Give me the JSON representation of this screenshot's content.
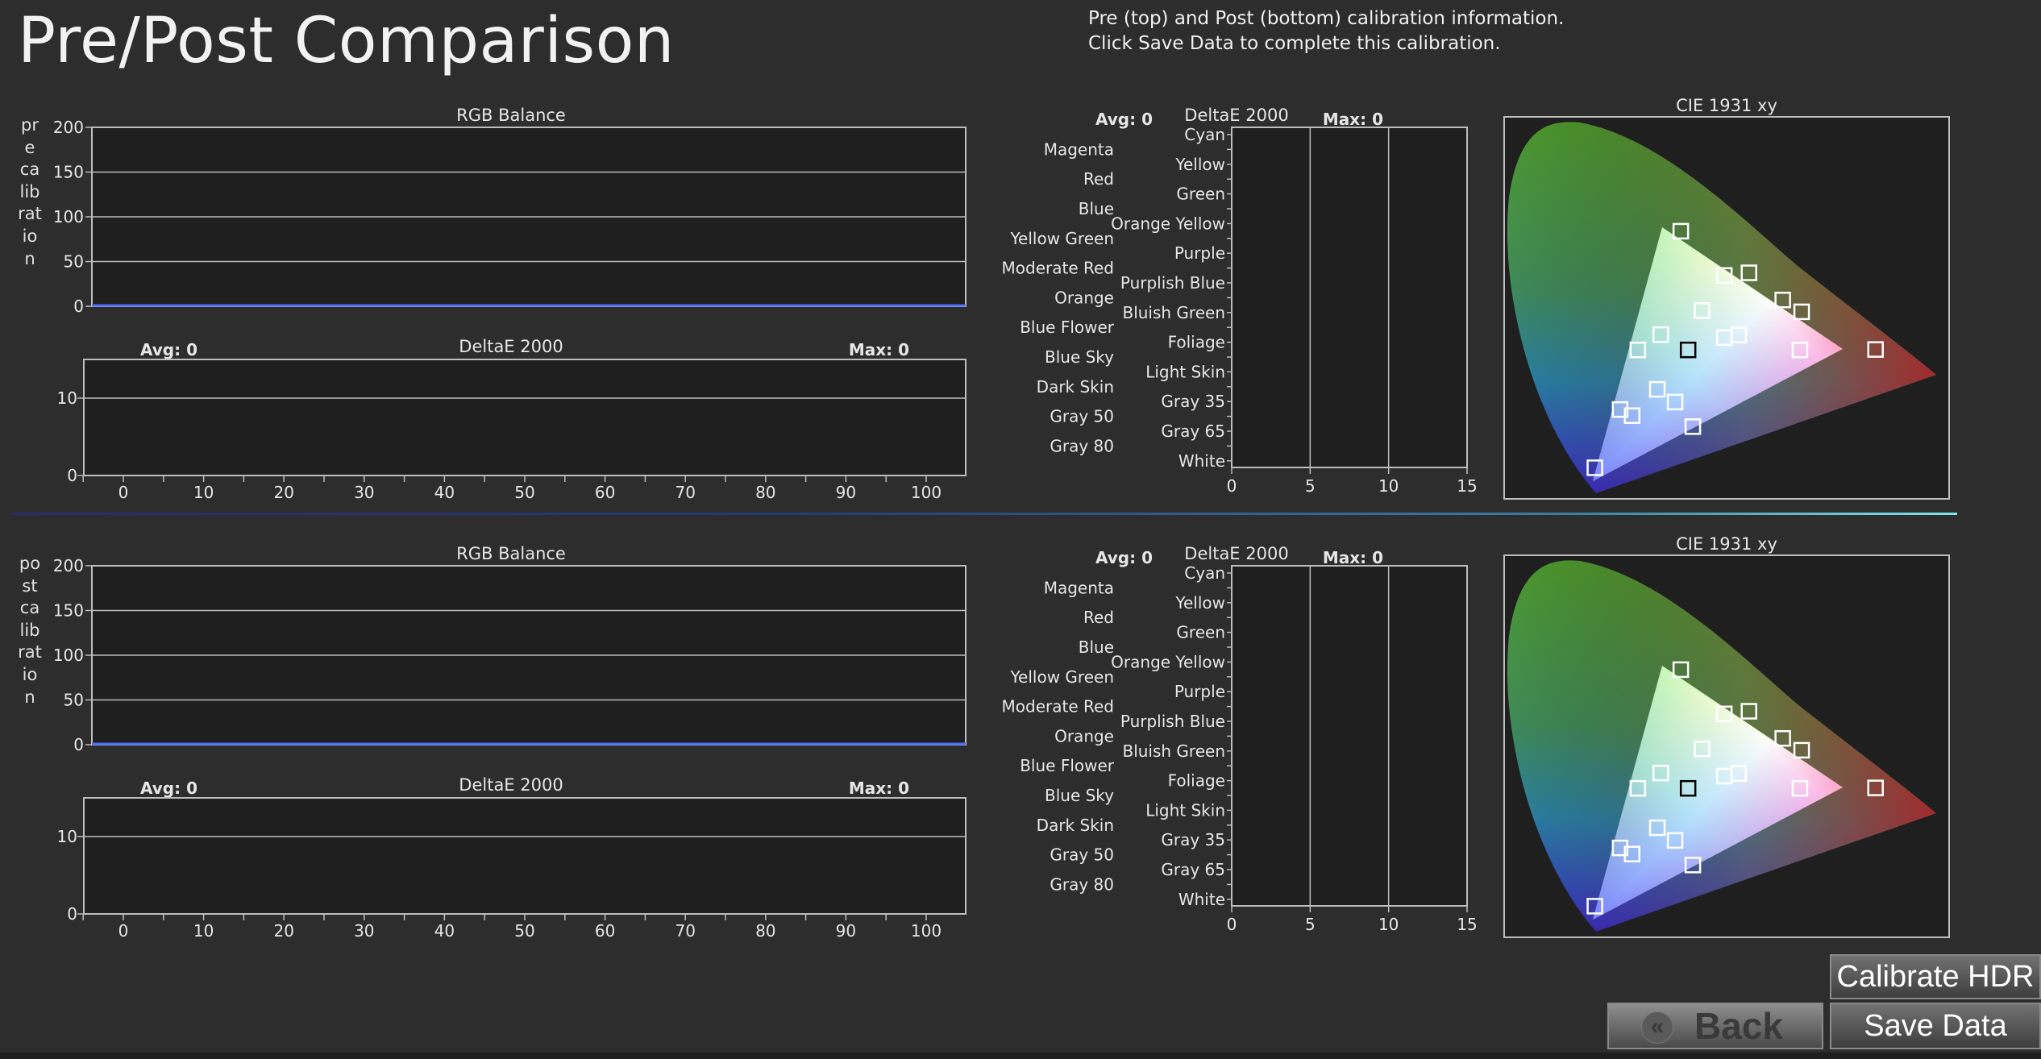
{
  "page_title": "Pre/Post Comparison",
  "info_lines": [
    "Pre (top) and Post (bottom) calibration information.",
    "Click Save Data to complete this calibration."
  ],
  "sections": [
    {
      "side_label": "pre calibration",
      "rgb_balance": {
        "title": "RGB Balance",
        "y_ticks": [
          "200",
          "150",
          "100",
          "50",
          "0"
        ]
      },
      "deltae_line": {
        "title": "DeltaE 2000",
        "avg": "Avg: 0",
        "max": "Max: 0",
        "y_ticks": [
          "10",
          "0"
        ],
        "x_ticks": [
          "0",
          "10",
          "20",
          "30",
          "40",
          "50",
          "60",
          "70",
          "80",
          "90",
          "100"
        ]
      },
      "deltae_bars": {
        "title": "DeltaE 2000",
        "avg": "Avg: 0",
        "max": "Max: 0",
        "left_labels": [
          "Magenta",
          "Red",
          "Blue",
          "Yellow Green",
          "Moderate Red",
          "Orange",
          "Blue Flower",
          "Blue Sky",
          "Dark Skin",
          "Gray 50",
          "Gray 80"
        ],
        "right_labels": [
          "Cyan",
          "Yellow",
          "Green",
          "Orange Yellow",
          "Purple",
          "Purplish Blue",
          "Bluish Green",
          "Foliage",
          "Light Skin",
          "Gray 35",
          "Gray 65",
          "White"
        ],
        "x_ticks": [
          "0",
          "5",
          "10",
          "15"
        ]
      },
      "cie": {
        "title": "CIE 1931 xy"
      }
    },
    {
      "side_label": "post calibration",
      "rgb_balance": {
        "title": "RGB Balance",
        "y_ticks": [
          "200",
          "150",
          "100",
          "50",
          "0"
        ]
      },
      "deltae_line": {
        "title": "DeltaE 2000",
        "avg": "Avg: 0",
        "max": "Max: 0",
        "y_ticks": [
          "10",
          "0"
        ],
        "x_ticks": [
          "0",
          "10",
          "20",
          "30",
          "40",
          "50",
          "60",
          "70",
          "80",
          "90",
          "100"
        ]
      },
      "deltae_bars": {
        "title": "DeltaE 2000",
        "avg": "Avg: 0",
        "max": "Max: 0",
        "left_labels": [
          "Magenta",
          "Red",
          "Blue",
          "Yellow Green",
          "Moderate Red",
          "Orange",
          "Blue Flower",
          "Blue Sky",
          "Dark Skin",
          "Gray 50",
          "Gray 80"
        ],
        "right_labels": [
          "Cyan",
          "Yellow",
          "Green",
          "Orange Yellow",
          "Purple",
          "Purplish Blue",
          "Bluish Green",
          "Foliage",
          "Light Skin",
          "Gray 35",
          "Gray 65",
          "White"
        ],
        "x_ticks": [
          "0",
          "5",
          "10",
          "15"
        ]
      },
      "cie": {
        "title": "CIE 1931 xy"
      }
    }
  ],
  "buttons": {
    "calibrate_hdr": "Calibrate HDR",
    "save_data": "Save Data",
    "back": "Back"
  },
  "colors": {
    "background": "#2d2d2d",
    "plot_bg": "#1f1f1f",
    "grid": "#bdbdbd",
    "rgb_line": "#4a6cff"
  },
  "icons": {
    "back": "double-chevron-left-icon"
  },
  "chart_data": [
    {
      "type": "line",
      "title": "RGB Balance",
      "ylim": [
        0,
        200
      ],
      "series": [
        {
          "values": [
            0,
            0
          ]
        }
      ],
      "grid": true
    },
    {
      "type": "line",
      "title": "DeltaE 2000",
      "xlim": [
        0,
        100
      ],
      "ylim": [
        0,
        15
      ],
      "series": [
        {
          "values": []
        }
      ],
      "grid": true
    },
    {
      "type": "bar",
      "title": "DeltaE 2000",
      "orientation": "horizontal",
      "categories": [
        "Cyan",
        "Magenta",
        "Yellow",
        "Red",
        "Green",
        "Blue",
        "Orange Yellow",
        "Yellow Green",
        "Purple",
        "Moderate Red",
        "Purplish Blue",
        "Orange",
        "Bluish Green",
        "Blue Flower",
        "Foliage",
        "Blue Sky",
        "Light Skin",
        "Dark Skin",
        "Gray 35",
        "Gray 50",
        "Gray 65",
        "Gray 80",
        "White"
      ],
      "values": [
        0,
        0,
        0,
        0,
        0,
        0,
        0,
        0,
        0,
        0,
        0,
        0,
        0,
        0,
        0,
        0,
        0,
        0,
        0,
        0,
        0,
        0,
        0
      ],
      "xlim": [
        0,
        15
      ],
      "grid": true
    },
    {
      "type": "scatter",
      "title": "CIE 1931 xy",
      "points": [
        {
          "x": 0.225,
          "y": 0.329
        },
        {
          "x": 0.321,
          "y": 0.154
        },
        {
          "x": 0.419,
          "y": 0.505
        },
        {
          "x": 0.64,
          "y": 0.33
        },
        {
          "x": 0.3,
          "y": 0.6
        },
        {
          "x": 0.15,
          "y": 0.06
        },
        {
          "x": 0.478,
          "y": 0.443
        },
        {
          "x": 0.376,
          "y": 0.499
        },
        {
          "x": 0.29,
          "y": 0.21
        },
        {
          "x": 0.508,
          "y": 0.329
        },
        {
          "x": 0.215,
          "y": 0.179
        },
        {
          "x": 0.511,
          "y": 0.416
        },
        {
          "x": 0.265,
          "y": 0.364
        },
        {
          "x": 0.259,
          "y": 0.239
        },
        {
          "x": 0.337,
          "y": 0.419
        },
        {
          "x": 0.194,
          "y": 0.193
        },
        {
          "x": 0.376,
          "y": 0.357
        },
        {
          "x": 0.401,
          "y": 0.363
        },
        {
          "x": 0.3127,
          "y": 0.329
        }
      ]
    }
  ]
}
